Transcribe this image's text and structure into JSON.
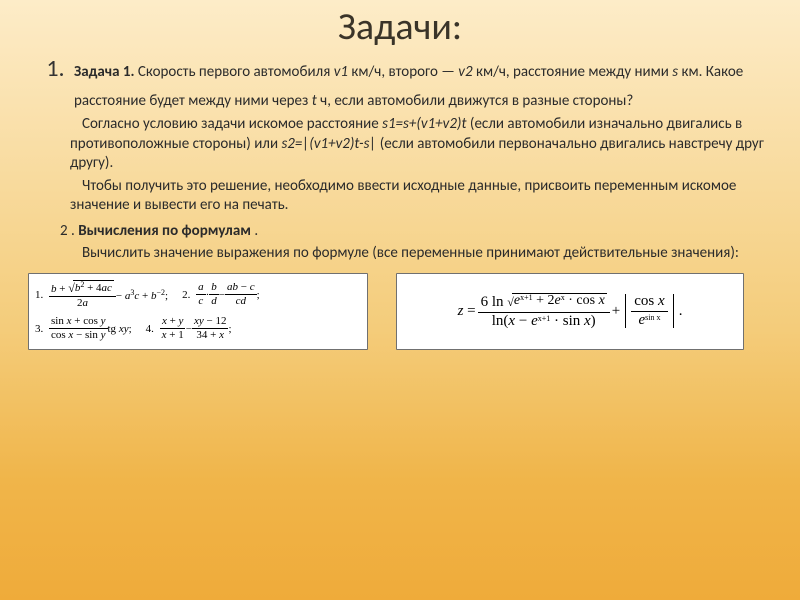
{
  "title": "Задачи:",
  "problem1": {
    "number": "1.",
    "label": "Задача 1.",
    "text_a": " Скорость первого автомобиля ",
    "v1": "v1",
    "text_b": " км/ч, второго — ",
    "v2": "v2",
    "text_c": " км/ч, расстояние между ними ",
    "s": "s",
    "text_d": " км. Какое расстояние будет между ними через ",
    "t": "t",
    "text_e": " ч, если автомобили движутся в разные стороны?"
  },
  "solution": {
    "intro": "Согласно условию задачи искомое расстояние ",
    "f1": "s1=s+(v1+v2)t",
    "mid1": " (если автомобили изначально двигались в противоположные стороны) или ",
    "f2": "s2=|(v1+v2)t-s|",
    "mid2": " (если автомобили первоначально двигались навстречу друг другу)."
  },
  "note": "Чтобы получить это решение, необходимо ввести исходные данные, присвоить переменным искомое значение и вывести его на печать.",
  "item2": {
    "number": "2 .",
    "title": "Вычисления по формулам",
    "dot": " .",
    "text": "Вычислить значение выражения по формуле (все переменные принимают действительные значения):"
  },
  "left_formulas": {
    "f1_top": "b + √(b² + 4ac)",
    "f1_bot": "2a",
    "f1_tail": " − a³c + b⁻²;",
    "f2a_top": "a",
    "f2a_bot": "c",
    "f2b_top": "b",
    "f2b_bot": "d",
    "f2c_top": "ab − c",
    "f2c_bot": "cd",
    "f3a_top": "sin x + cos y",
    "f3a_bot": "cos x − sin y",
    "f3_tail": " tg xy;",
    "f4a_top": "x + y",
    "f4a_bot": "x + 1",
    "f4b_top": "xy − 12",
    "f4b_bot": "34 + x"
  },
  "right_formula": {
    "z": "z = ",
    "num_top": "6 ln √(eˣ⁺¹ + 2eˣ · cos x)",
    "num_bot": "ln(x − eˣ⁺¹ · sin x)",
    "abs_top": "cos x",
    "abs_bot": "eˢⁱⁿˣ",
    "dot": "."
  },
  "colors": {
    "bg_top": "#fdecc8",
    "bg_mid": "#f4cc7a",
    "bg_bot": "#efab3a",
    "title_color": "#3a3429",
    "text_color": "#2b2b2b",
    "box_bg": "#ffffff",
    "box_border": "#707070"
  },
  "typography": {
    "title_fontsize_pt": 28,
    "body_fontsize_pt": 11,
    "formula_fontsize_pt": 9,
    "font_family": "Calibri",
    "formula_font": "Cambria Math / Times"
  }
}
